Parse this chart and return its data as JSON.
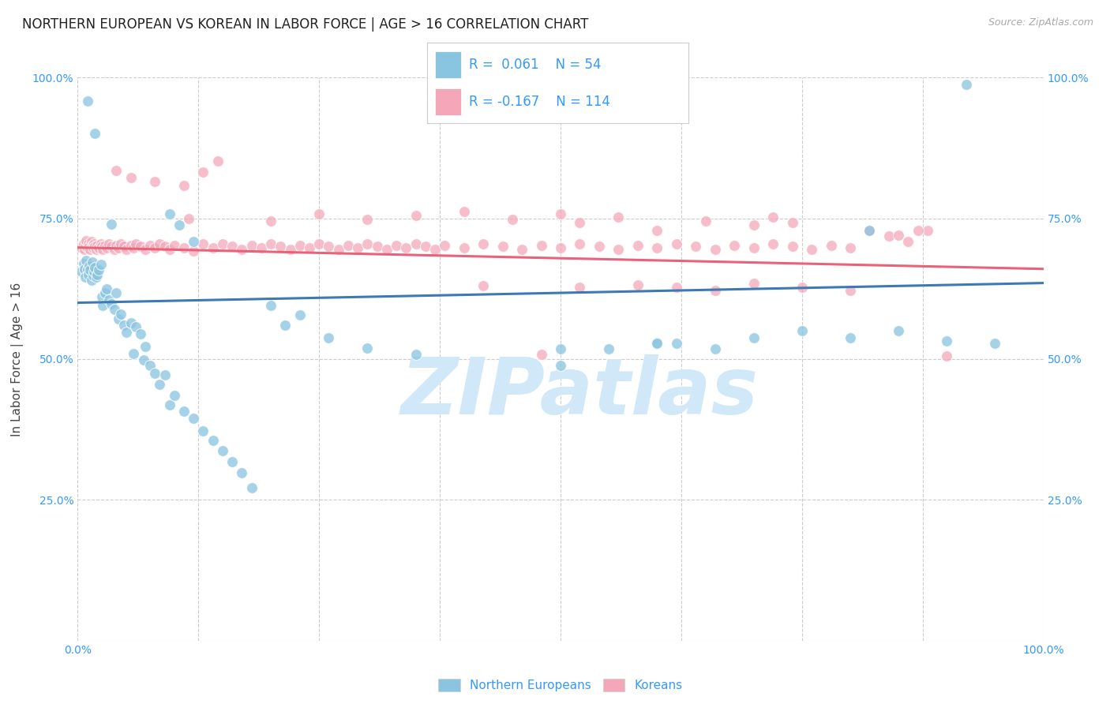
{
  "title": "NORTHERN EUROPEAN VS KOREAN IN LABOR FORCE | AGE > 16 CORRELATION CHART",
  "source_text": "Source: ZipAtlas.com",
  "ylabel": "In Labor Force | Age > 16",
  "xlim": [
    0.0,
    1.0
  ],
  "ylim": [
    0.0,
    1.0
  ],
  "ytick_positions": [
    0.0,
    0.25,
    0.5,
    0.75,
    1.0
  ],
  "grid_color": "#cccccc",
  "background_color": "#ffffff",
  "watermark_text": "ZIPatlas",
  "watermark_color": "#d0e8f8",
  "blue_color": "#89c4e1",
  "pink_color": "#f4a7b9",
  "blue_line_color": "#3d7ab5",
  "pink_line_color": "#e8637a",
  "axis_color": "#3399ff",
  "blue_scatter": [
    [
      0.004,
      0.655
    ],
    [
      0.006,
      0.67
    ],
    [
      0.007,
      0.66
    ],
    [
      0.008,
      0.645
    ],
    [
      0.009,
      0.675
    ],
    [
      0.01,
      0.66
    ],
    [
      0.011,
      0.65
    ],
    [
      0.012,
      0.665
    ],
    [
      0.013,
      0.658
    ],
    [
      0.014,
      0.64
    ],
    [
      0.015,
      0.672
    ],
    [
      0.016,
      0.648
    ],
    [
      0.017,
      0.655
    ],
    [
      0.018,
      0.662
    ],
    [
      0.019,
      0.645
    ],
    [
      0.02,
      0.65
    ],
    [
      0.022,
      0.658
    ],
    [
      0.024,
      0.668
    ],
    [
      0.025,
      0.61
    ],
    [
      0.026,
      0.595
    ],
    [
      0.028,
      0.618
    ],
    [
      0.03,
      0.625
    ],
    [
      0.032,
      0.605
    ],
    [
      0.035,
      0.598
    ],
    [
      0.038,
      0.588
    ],
    [
      0.04,
      0.618
    ],
    [
      0.042,
      0.572
    ],
    [
      0.045,
      0.58
    ],
    [
      0.048,
      0.56
    ],
    [
      0.05,
      0.548
    ],
    [
      0.055,
      0.565
    ],
    [
      0.058,
      0.51
    ],
    [
      0.06,
      0.558
    ],
    [
      0.065,
      0.545
    ],
    [
      0.068,
      0.498
    ],
    [
      0.07,
      0.522
    ],
    [
      0.075,
      0.488
    ],
    [
      0.08,
      0.475
    ],
    [
      0.085,
      0.455
    ],
    [
      0.09,
      0.472
    ],
    [
      0.095,
      0.418
    ],
    [
      0.1,
      0.435
    ],
    [
      0.11,
      0.408
    ],
    [
      0.12,
      0.395
    ],
    [
      0.13,
      0.372
    ],
    [
      0.14,
      0.355
    ],
    [
      0.15,
      0.338
    ],
    [
      0.16,
      0.318
    ],
    [
      0.17,
      0.298
    ],
    [
      0.18,
      0.272
    ],
    [
      0.2,
      0.595
    ],
    [
      0.215,
      0.56
    ],
    [
      0.23,
      0.578
    ],
    [
      0.26,
      0.538
    ],
    [
      0.3,
      0.52
    ],
    [
      0.35,
      0.508
    ],
    [
      0.035,
      0.74
    ],
    [
      0.018,
      0.9
    ],
    [
      0.92,
      0.988
    ],
    [
      0.5,
      0.518
    ],
    [
      0.6,
      0.53
    ],
    [
      0.62,
      0.528
    ],
    [
      0.66,
      0.518
    ],
    [
      0.7,
      0.538
    ],
    [
      0.75,
      0.55
    ],
    [
      0.8,
      0.538
    ],
    [
      0.82,
      0.728
    ],
    [
      0.85,
      0.55
    ],
    [
      0.9,
      0.532
    ],
    [
      0.95,
      0.528
    ],
    [
      0.01,
      0.958
    ],
    [
      0.105,
      0.738
    ],
    [
      0.12,
      0.708
    ],
    [
      0.095,
      0.758
    ],
    [
      0.6,
      0.528
    ],
    [
      0.5,
      0.488
    ],
    [
      0.55,
      0.518
    ]
  ],
  "pink_scatter": [
    [
      0.004,
      0.698
    ],
    [
      0.006,
      0.705
    ],
    [
      0.007,
      0.695
    ],
    [
      0.008,
      0.702
    ],
    [
      0.009,
      0.71
    ],
    [
      0.01,
      0.698
    ],
    [
      0.011,
      0.705
    ],
    [
      0.012,
      0.7
    ],
    [
      0.013,
      0.695
    ],
    [
      0.014,
      0.708
    ],
    [
      0.015,
      0.702
    ],
    [
      0.016,
      0.698
    ],
    [
      0.017,
      0.705
    ],
    [
      0.018,
      0.7
    ],
    [
      0.019,
      0.695
    ],
    [
      0.02,
      0.702
    ],
    [
      0.022,
      0.698
    ],
    [
      0.024,
      0.705
    ],
    [
      0.025,
      0.7
    ],
    [
      0.026,
      0.695
    ],
    [
      0.028,
      0.702
    ],
    [
      0.03,
      0.698
    ],
    [
      0.032,
      0.705
    ],
    [
      0.035,
      0.7
    ],
    [
      0.038,
      0.695
    ],
    [
      0.04,
      0.702
    ],
    [
      0.042,
      0.698
    ],
    [
      0.045,
      0.705
    ],
    [
      0.048,
      0.7
    ],
    [
      0.05,
      0.695
    ],
    [
      0.055,
      0.702
    ],
    [
      0.058,
      0.698
    ],
    [
      0.06,
      0.705
    ],
    [
      0.065,
      0.7
    ],
    [
      0.07,
      0.695
    ],
    [
      0.075,
      0.702
    ],
    [
      0.08,
      0.698
    ],
    [
      0.085,
      0.705
    ],
    [
      0.09,
      0.7
    ],
    [
      0.095,
      0.695
    ],
    [
      0.1,
      0.702
    ],
    [
      0.11,
      0.698
    ],
    [
      0.115,
      0.75
    ],
    [
      0.12,
      0.692
    ],
    [
      0.13,
      0.705
    ],
    [
      0.14,
      0.698
    ],
    [
      0.15,
      0.705
    ],
    [
      0.16,
      0.7
    ],
    [
      0.17,
      0.695
    ],
    [
      0.18,
      0.702
    ],
    [
      0.19,
      0.698
    ],
    [
      0.2,
      0.705
    ],
    [
      0.21,
      0.7
    ],
    [
      0.22,
      0.695
    ],
    [
      0.23,
      0.702
    ],
    [
      0.24,
      0.698
    ],
    [
      0.25,
      0.705
    ],
    [
      0.26,
      0.7
    ],
    [
      0.27,
      0.695
    ],
    [
      0.28,
      0.702
    ],
    [
      0.29,
      0.698
    ],
    [
      0.3,
      0.705
    ],
    [
      0.31,
      0.7
    ],
    [
      0.32,
      0.695
    ],
    [
      0.33,
      0.702
    ],
    [
      0.34,
      0.698
    ],
    [
      0.35,
      0.705
    ],
    [
      0.36,
      0.7
    ],
    [
      0.37,
      0.695
    ],
    [
      0.38,
      0.702
    ],
    [
      0.4,
      0.698
    ],
    [
      0.42,
      0.705
    ],
    [
      0.44,
      0.7
    ],
    [
      0.46,
      0.695
    ],
    [
      0.48,
      0.702
    ],
    [
      0.5,
      0.698
    ],
    [
      0.52,
      0.705
    ],
    [
      0.54,
      0.7
    ],
    [
      0.56,
      0.695
    ],
    [
      0.58,
      0.702
    ],
    [
      0.6,
      0.698
    ],
    [
      0.62,
      0.705
    ],
    [
      0.64,
      0.7
    ],
    [
      0.66,
      0.695
    ],
    [
      0.68,
      0.702
    ],
    [
      0.7,
      0.698
    ],
    [
      0.72,
      0.705
    ],
    [
      0.74,
      0.7
    ],
    [
      0.76,
      0.695
    ],
    [
      0.78,
      0.702
    ],
    [
      0.8,
      0.698
    ],
    [
      0.82,
      0.728
    ],
    [
      0.84,
      0.718
    ],
    [
      0.86,
      0.708
    ],
    [
      0.88,
      0.728
    ],
    [
      0.04,
      0.835
    ],
    [
      0.055,
      0.822
    ],
    [
      0.08,
      0.815
    ],
    [
      0.11,
      0.808
    ],
    [
      0.13,
      0.832
    ],
    [
      0.145,
      0.852
    ],
    [
      0.2,
      0.745
    ],
    [
      0.25,
      0.758
    ],
    [
      0.3,
      0.748
    ],
    [
      0.35,
      0.755
    ],
    [
      0.4,
      0.762
    ],
    [
      0.45,
      0.748
    ],
    [
      0.5,
      0.758
    ],
    [
      0.52,
      0.742
    ],
    [
      0.56,
      0.752
    ],
    [
      0.6,
      0.728
    ],
    [
      0.65,
      0.745
    ],
    [
      0.7,
      0.738
    ],
    [
      0.72,
      0.752
    ],
    [
      0.74,
      0.742
    ],
    [
      0.85,
      0.72
    ],
    [
      0.87,
      0.728
    ],
    [
      0.9,
      0.505
    ],
    [
      0.48,
      0.508
    ],
    [
      0.42,
      0.63
    ],
    [
      0.52,
      0.628
    ],
    [
      0.58,
      0.632
    ],
    [
      0.62,
      0.628
    ],
    [
      0.66,
      0.622
    ],
    [
      0.7,
      0.635
    ],
    [
      0.75,
      0.628
    ],
    [
      0.8,
      0.622
    ]
  ],
  "blue_trend_x": [
    0.0,
    1.0
  ],
  "blue_trend_y": [
    0.6,
    0.635
  ],
  "pink_trend_x": [
    0.0,
    1.0
  ],
  "pink_trend_y": [
    0.698,
    0.66
  ],
  "title_fontsize": 12,
  "axis_label_fontsize": 11,
  "tick_fontsize": 10,
  "legend_fontsize": 13
}
